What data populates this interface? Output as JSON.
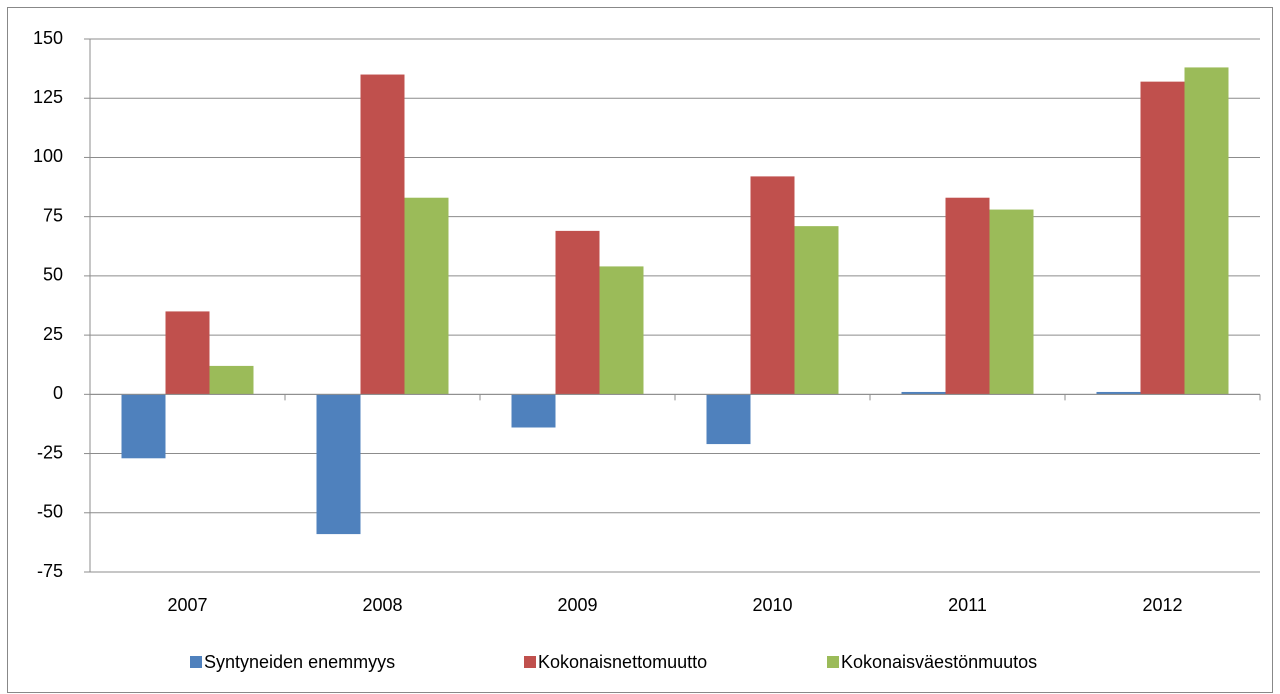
{
  "chart_data": {
    "type": "bar",
    "categories": [
      "2007",
      "2008",
      "2009",
      "2010",
      "2011",
      "2012"
    ],
    "series": [
      {
        "name": "Syntyneiden enemmyys",
        "color": "#4f81bd",
        "values": [
          -27,
          -59,
          -14,
          -21,
          1,
          1
        ]
      },
      {
        "name": "Kokonaisnettomuutto",
        "color": "#c0504d",
        "values": [
          35,
          135,
          69,
          92,
          83,
          132
        ]
      },
      {
        "name": "Kokonaisväestönmuutos",
        "color": "#9bbb59",
        "values": [
          12,
          83,
          54,
          71,
          78,
          138
        ]
      }
    ],
    "ylim": [
      -75,
      150
    ],
    "yticks": [
      -75,
      -50,
      -25,
      0,
      25,
      50,
      75,
      100,
      125,
      150
    ],
    "grid": true,
    "legend": "bottom"
  }
}
